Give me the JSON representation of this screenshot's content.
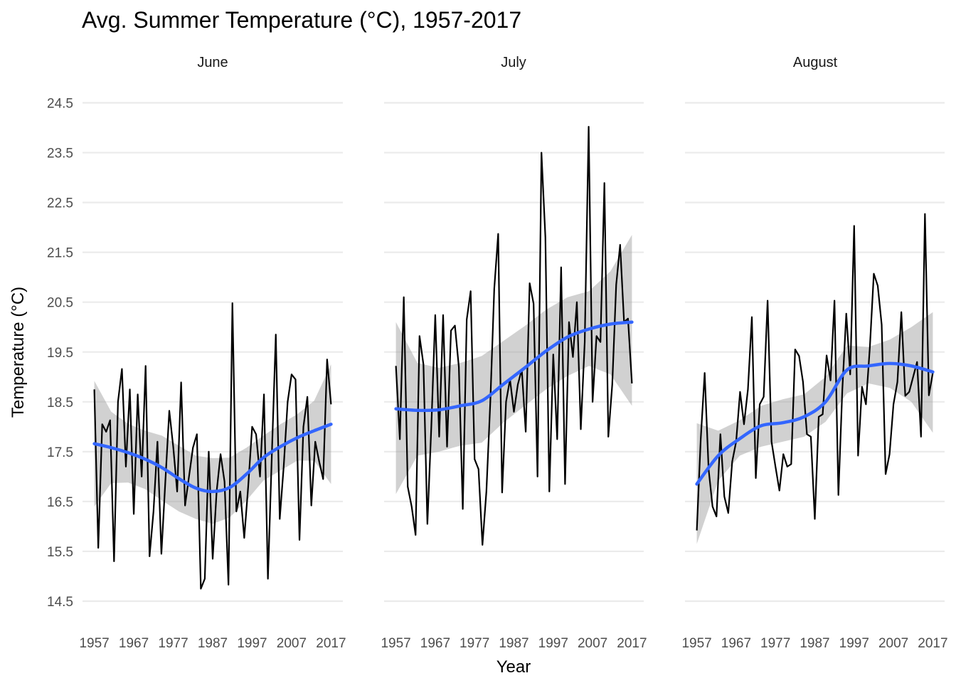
{
  "chart_data": {
    "type": "line",
    "title": "Avg. Summer Temperature (°C), 1957-2017",
    "xlabel": "Year",
    "ylabel": "Temperature (°C)",
    "xlim": [
      1957,
      2017
    ],
    "ylim": [
      14.5,
      24.5
    ],
    "x_ticks": [
      "1957",
      "1967",
      "1977",
      "1987",
      "1997",
      "2007",
      "2017"
    ],
    "y_ticks": [
      "14.5",
      "15.5",
      "16.5",
      "17.5",
      "18.5",
      "19.5",
      "20.5",
      "21.5",
      "22.5",
      "23.5",
      "24.5"
    ],
    "grid": true,
    "legend": "none",
    "colors": {
      "observed": "#000000",
      "smooth": "#3366ff",
      "band": "#999999",
      "grid": "#ebebeb"
    },
    "facets": [
      {
        "label": "June",
        "years": [
          1957,
          1958,
          1959,
          1960,
          1961,
          1962,
          1963,
          1964,
          1965,
          1966,
          1967,
          1968,
          1969,
          1970,
          1971,
          1972,
          1973,
          1974,
          1975,
          1976,
          1977,
          1978,
          1979,
          1980,
          1981,
          1982,
          1983,
          1984,
          1985,
          1986,
          1987,
          1988,
          1989,
          1990,
          1991,
          1992,
          1993,
          1994,
          1995,
          1996,
          1997,
          1998,
          1999,
          2000,
          2001,
          2002,
          2003,
          2004,
          2005,
          2006,
          2007,
          2008,
          2009,
          2010,
          2011,
          2012,
          2013,
          2014,
          2015,
          2016,
          2017
        ],
        "values": [
          18.75,
          15.57,
          18.05,
          17.9,
          18.13,
          15.3,
          18.5,
          19.16,
          17.2,
          18.75,
          16.25,
          18.65,
          17.0,
          19.22,
          15.4,
          16.3,
          17.7,
          15.45,
          16.9,
          18.32,
          17.6,
          16.7,
          18.89,
          16.42,
          17.0,
          17.58,
          17.85,
          14.75,
          14.95,
          17.5,
          15.35,
          16.7,
          17.45,
          16.9,
          14.83,
          20.48,
          16.3,
          16.7,
          15.77,
          16.8,
          18.0,
          17.85,
          17.0,
          18.65,
          14.95,
          17.45,
          19.85,
          16.15,
          17.2,
          18.5,
          19.05,
          18.95,
          15.73,
          18.0,
          18.6,
          16.42,
          17.7,
          17.3,
          16.95,
          19.35,
          18.45
        ],
        "smooth": [
          17.66,
          17.58,
          17.48,
          17.35,
          17.18,
          16.96,
          16.77,
          16.7,
          16.78,
          17.05,
          17.38,
          17.6,
          17.78,
          17.92,
          18.05
        ],
        "band_lower": [
          16.4,
          16.87,
          16.88,
          16.75,
          16.52,
          16.3,
          16.15,
          16.05,
          16.18,
          16.52,
          16.92,
          17.12,
          17.32,
          17.32,
          16.85
        ],
        "band_upper": [
          18.92,
          18.3,
          18.06,
          17.92,
          17.82,
          17.62,
          17.42,
          17.37,
          17.38,
          17.58,
          17.82,
          18.05,
          18.25,
          18.52,
          19.25
        ]
      },
      {
        "label": "July",
        "years": [
          1957,
          1958,
          1959,
          1960,
          1961,
          1962,
          1963,
          1964,
          1965,
          1966,
          1967,
          1968,
          1969,
          1970,
          1971,
          1972,
          1973,
          1974,
          1975,
          1976,
          1977,
          1978,
          1979,
          1980,
          1981,
          1982,
          1983,
          1984,
          1985,
          1986,
          1987,
          1988,
          1989,
          1990,
          1991,
          1992,
          1993,
          1994,
          1995,
          1996,
          1997,
          1998,
          1999,
          2000,
          2001,
          2002,
          2003,
          2004,
          2005,
          2006,
          2007,
          2008,
          2009,
          2010,
          2011,
          2012,
          2013,
          2014,
          2015,
          2016,
          2017
        ],
        "values": [
          19.22,
          17.75,
          20.6,
          16.8,
          16.4,
          15.83,
          19.82,
          19.25,
          16.05,
          18.0,
          20.24,
          17.8,
          20.24,
          17.6,
          19.93,
          20.03,
          19.2,
          16.35,
          20.15,
          20.72,
          17.35,
          17.15,
          15.63,
          16.7,
          18.5,
          20.77,
          21.87,
          16.68,
          18.5,
          18.95,
          18.3,
          18.85,
          19.15,
          17.9,
          20.88,
          20.47,
          17.0,
          23.5,
          21.8,
          16.7,
          19.45,
          17.75,
          21.2,
          16.85,
          20.1,
          19.4,
          20.5,
          17.95,
          19.7,
          24.02,
          18.5,
          19.82,
          19.7,
          22.89,
          17.8,
          18.85,
          20.85,
          21.65,
          20.1,
          20.17,
          18.87
        ],
        "smooth": [
          18.36,
          18.33,
          18.34,
          18.42,
          18.52,
          18.85,
          19.18,
          19.52,
          19.8,
          19.96,
          20.06,
          20.1
        ],
        "band_lower": [
          16.65,
          17.42,
          17.5,
          17.62,
          17.68,
          18.08,
          18.42,
          18.75,
          19.02,
          19.22,
          19.05,
          18.42
        ],
        "band_upper": [
          20.1,
          19.28,
          19.18,
          19.28,
          19.42,
          19.72,
          20.02,
          20.35,
          20.6,
          20.72,
          21.12,
          21.85
        ]
      },
      {
        "label": "August",
        "years": [
          1957,
          1958,
          1959,
          1960,
          1961,
          1962,
          1963,
          1964,
          1965,
          1966,
          1967,
          1968,
          1969,
          1970,
          1971,
          1972,
          1973,
          1974,
          1975,
          1976,
          1977,
          1978,
          1979,
          1980,
          1981,
          1982,
          1983,
          1984,
          1985,
          1986,
          1987,
          1988,
          1989,
          1990,
          1991,
          1992,
          1993,
          1994,
          1995,
          1996,
          1997,
          1998,
          1999,
          2000,
          2001,
          2002,
          2003,
          2004,
          2005,
          2006,
          2007,
          2008,
          2009,
          2010,
          2011,
          2012,
          2013,
          2014,
          2015,
          2016,
          2017
        ],
        "values": [
          15.92,
          17.75,
          19.08,
          17.15,
          16.4,
          16.2,
          17.85,
          16.6,
          16.27,
          17.3,
          17.7,
          18.7,
          18.05,
          18.75,
          20.2,
          16.97,
          18.45,
          18.6,
          20.53,
          17.7,
          17.2,
          16.72,
          17.45,
          17.2,
          17.25,
          19.55,
          19.42,
          18.9,
          17.85,
          17.8,
          16.15,
          18.2,
          18.25,
          19.43,
          18.93,
          20.53,
          16.63,
          18.75,
          20.27,
          19.05,
          22.03,
          17.42,
          18.8,
          18.45,
          19.6,
          21.07,
          20.83,
          20.05,
          17.05,
          17.45,
          18.45,
          18.9,
          20.3,
          18.62,
          18.7,
          19.0,
          19.3,
          17.8,
          22.27,
          18.63,
          19.08
        ],
        "smooth": [
          16.85,
          17.42,
          17.76,
          18.02,
          18.08,
          18.2,
          18.5,
          19.14,
          19.22,
          19.27,
          19.22,
          19.1
        ],
        "band_lower": [
          15.65,
          16.92,
          17.42,
          17.6,
          17.7,
          17.8,
          18.1,
          18.67,
          18.87,
          18.78,
          18.5,
          17.88
        ],
        "band_upper": [
          18.07,
          17.92,
          18.13,
          18.42,
          18.55,
          18.65,
          19.0,
          19.63,
          19.6,
          19.75,
          20.0,
          20.3
        ]
      }
    ]
  }
}
